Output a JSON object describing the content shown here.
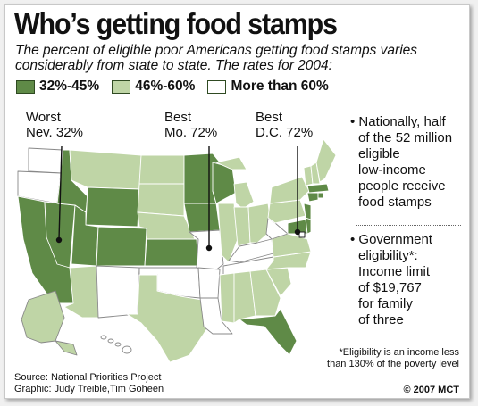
{
  "title": "Who’s getting food stamps",
  "subtitle": "The percent of eligible poor Americans getting food stamps varies considerably from state to state. The rates for 2004:",
  "legend": [
    {
      "label": "32%-45%",
      "color": "#5f8a47"
    },
    {
      "label": "46%-60%",
      "color": "#bfd5a6"
    },
    {
      "label": "More than 60%",
      "color": "#ffffff"
    }
  ],
  "callouts": [
    {
      "line1": "Worst",
      "line2": "Nev. 32%"
    },
    {
      "line1": "Best",
      "line2": "Mo. 72%"
    },
    {
      "line1": "Best",
      "line2": "D.C. 72%"
    }
  ],
  "side_note_1": [
    "• Nationally, half",
    "of the 52 million",
    "eligible",
    "low-income",
    "people receive",
    "food stamps"
  ],
  "side_note_2": [
    "• Government",
    "eligibility*:",
    "Income limit",
    "of $19,767",
    "for family",
    "of three"
  ],
  "footnote": [
    "*Eligibility is an income less",
    "than 130% of the poverty level"
  ],
  "source": "Source: National Priorities Project",
  "graphic": "Graphic: Judy Treible,Tim Goheen",
  "copyright": "© 2007 MCT"
}
